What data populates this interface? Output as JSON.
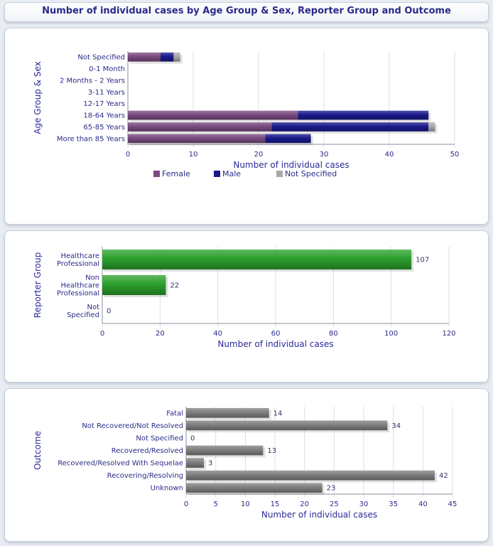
{
  "page_title": "Number of individual cases by Age Group & Sex, Reporter Group and Outcome",
  "chart_data": [
    {
      "type": "bar",
      "orientation": "horizontal",
      "stacked": true,
      "categories": [
        "Not Specified",
        "0-1 Month",
        "2 Months - 2 Years",
        "3-11 Years",
        "12-17 Years",
        "18-64 Years",
        "65-85 Years",
        "More than 85 Years"
      ],
      "series": [
        {
          "name": "Female",
          "color": "#7a4a7f",
          "values": [
            5,
            0,
            0,
            0,
            0,
            26,
            22,
            21
          ]
        },
        {
          "name": "Male",
          "color": "#1a1a8c",
          "values": [
            2,
            0,
            0,
            0,
            0,
            20,
            24,
            7
          ]
        },
        {
          "name": "Not Specified",
          "color": "#a9a9a9",
          "values": [
            1,
            0,
            0,
            0,
            0,
            0,
            1,
            0
          ]
        }
      ],
      "xlabel": "Number of individual cases",
      "ylabel": "Age Group & Sex",
      "xlim": [
        0,
        50
      ],
      "xticks": [
        0,
        10,
        20,
        30,
        40,
        50
      ],
      "grid": true,
      "legend_position": "bottom"
    },
    {
      "type": "bar",
      "orientation": "horizontal",
      "categories": [
        [
          "Healthcare",
          "Professional"
        ],
        [
          "Non",
          "Healthcare",
          "Professional"
        ],
        [
          "Not",
          "Specified"
        ]
      ],
      "values": [
        107,
        22,
        0
      ],
      "color": "#2ca02c",
      "xlabel": "Number of individual cases",
      "ylabel": "Reporter Group",
      "xlim": [
        0,
        120
      ],
      "xticks": [
        0,
        20,
        40,
        60,
        80,
        100,
        120
      ],
      "grid": true
    },
    {
      "type": "bar",
      "orientation": "horizontal",
      "categories": [
        "Fatal",
        "Not Recovered/Not Resolved",
        "Not Specified",
        "Recovered/Resolved",
        "Recovered/Resolved With Sequelae",
        "Recovering/Resolving",
        "Unknown"
      ],
      "values": [
        14,
        34,
        0,
        13,
        3,
        42,
        23
      ],
      "color": "#7f7f7f",
      "xlabel": "Number of individual cases",
      "ylabel": "Outcome",
      "xlim": [
        0,
        45
      ],
      "xticks": [
        0,
        5,
        10,
        15,
        20,
        25,
        30,
        35,
        40,
        45
      ],
      "grid": true
    }
  ]
}
